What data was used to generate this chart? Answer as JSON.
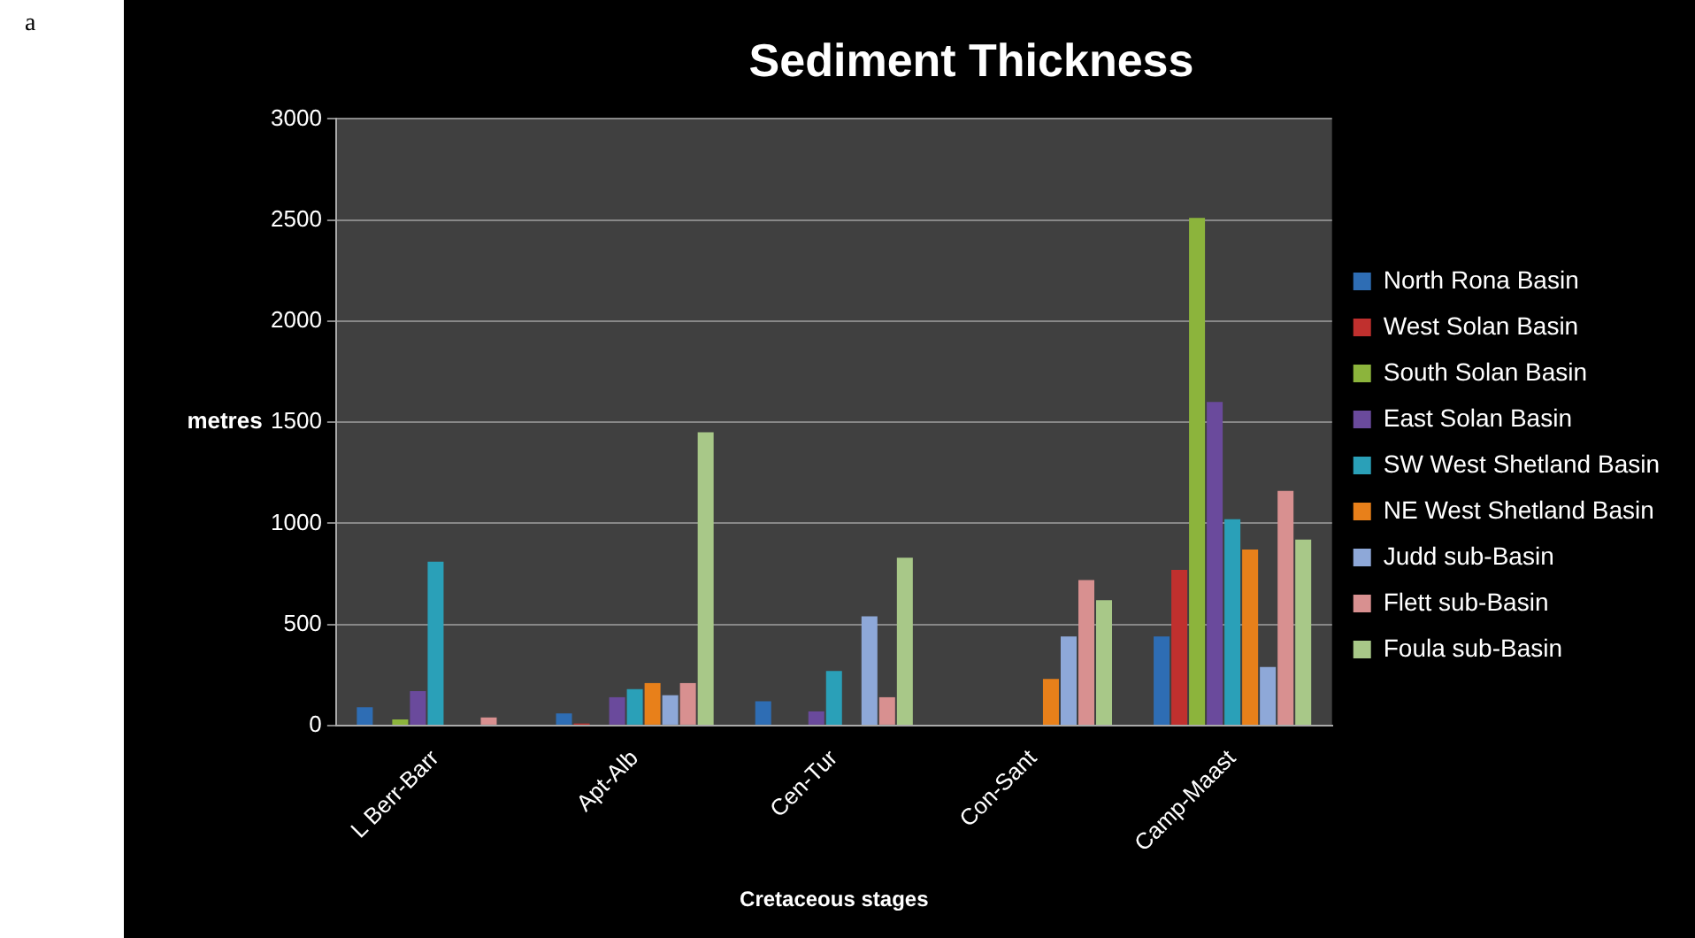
{
  "chart_data": {
    "type": "bar",
    "title": "Sediment Thickness",
    "xlabel": "Cretaceous stages",
    "ylabel": "metres",
    "annotations": [
      "a"
    ],
    "categories": [
      "L Berr-Barr",
      "Apt-Alb",
      "Cen-Tur",
      "Con-Sant",
      "Camp-Maast"
    ],
    "series": [
      {
        "name": "North Rona Basin",
        "color": "#2e6db4",
        "values": [
          90,
          60,
          120,
          0,
          440
        ]
      },
      {
        "name": "West Solan Basin",
        "color": "#c0302e",
        "values": [
          0,
          10,
          0,
          0,
          770
        ]
      },
      {
        "name": "South Solan Basin",
        "color": "#8cb43c",
        "values": [
          30,
          0,
          0,
          0,
          2510
        ]
      },
      {
        "name": "East Solan Basin",
        "color": "#6a4a9c",
        "values": [
          170,
          140,
          70,
          0,
          1600
        ]
      },
      {
        "name": "SW West Shetland Basin",
        "color": "#2aa0b8",
        "values": [
          810,
          180,
          270,
          0,
          1020
        ]
      },
      {
        "name": "NE West Shetland Basin",
        "color": "#e8801a",
        "values": [
          0,
          210,
          0,
          230,
          870
        ]
      },
      {
        "name": "Judd sub-Basin",
        "color": "#8ea8d8",
        "values": [
          0,
          150,
          540,
          440,
          290
        ]
      },
      {
        "name": "Flett sub-Basin",
        "color": "#d89090",
        "values": [
          40,
          210,
          140,
          720,
          1160
        ]
      },
      {
        "name": "Foula sub-Basin",
        "color": "#a8c888",
        "values": [
          0,
          1450,
          830,
          620,
          920
        ]
      }
    ],
    "ylim": [
      0,
      3000
    ],
    "yticks": [
      0,
      500,
      1000,
      1500,
      2000,
      2500,
      3000
    ],
    "grid": "y",
    "legend": "right"
  }
}
